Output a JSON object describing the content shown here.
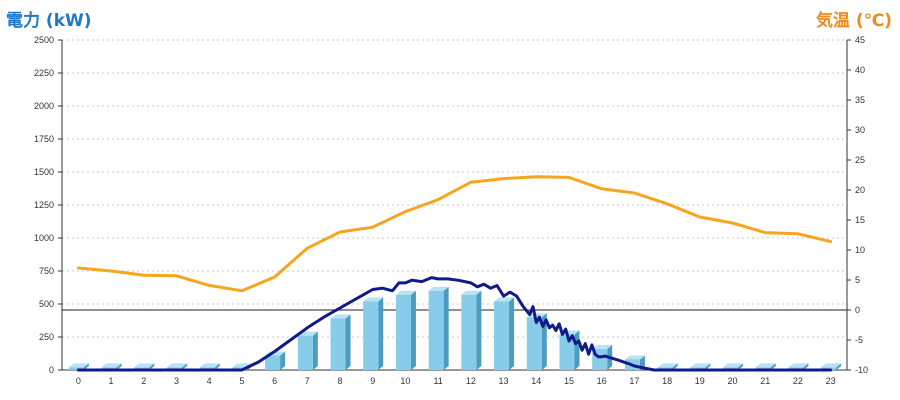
{
  "colors": {
    "power_axis": "#1f78c8",
    "temp_axis": "#f08a1c",
    "bar_face": "#87cde9",
    "bar_side": "#4b9cc0",
    "bar_top": "#b9e3f4",
    "power_line": "#101a8a",
    "temp_line": "#f7a51e",
    "grid": "#c8c8c8"
  },
  "chart_data": {
    "type": "bar+line",
    "left_axis_title": "電力 (kW)",
    "right_axis_title": "気温 (℃)",
    "categories": [
      "0",
      "1",
      "2",
      "3",
      "4",
      "5",
      "6",
      "7",
      "8",
      "9",
      "10",
      "11",
      "12",
      "13",
      "14",
      "15",
      "16",
      "17",
      "18",
      "19",
      "20",
      "21",
      "22",
      "23"
    ],
    "y_left": {
      "range": [
        0,
        2500
      ],
      "ticks": [
        0,
        250,
        500,
        750,
        1000,
        1250,
        1500,
        1750,
        2000,
        2250,
        2500
      ]
    },
    "y_right": {
      "range": [
        -10,
        45
      ],
      "ticks": [
        -10,
        -5,
        0,
        5,
        10,
        15,
        20,
        25,
        30,
        35,
        40,
        45
      ]
    },
    "grid": "horizontal-dashed",
    "series": [
      {
        "kind": "bar",
        "axis": "left",
        "values": [
          20,
          20,
          20,
          20,
          20,
          20,
          110,
          260,
          390,
          520,
          570,
          600,
          570,
          520,
          400,
          270,
          160,
          80,
          20,
          20,
          20,
          20,
          20,
          20
        ]
      },
      {
        "kind": "line",
        "axis": "left",
        "x": [
          0,
          1,
          2,
          3,
          4,
          5,
          5.5,
          6,
          6.5,
          7,
          7.5,
          8,
          8.5,
          9,
          9.3,
          9.6,
          9.8,
          10,
          10.2,
          10.5,
          10.8,
          11,
          11.3,
          11.6,
          12,
          12.2,
          12.4,
          12.6,
          12.8,
          13,
          13.2,
          13.4,
          13.6,
          13.8,
          13.9,
          14,
          14.1,
          14.2,
          14.3,
          14.4,
          14.5,
          14.6,
          14.7,
          14.8,
          14.9,
          15,
          15.1,
          15.2,
          15.3,
          15.4,
          15.5,
          15.6,
          15.7,
          15.8,
          15.9,
          16,
          16.1,
          16.3,
          16.5,
          16.8,
          17,
          17.3,
          17.6,
          17.8,
          18,
          18.5,
          19,
          20,
          21,
          22,
          23
        ],
        "values": [
          0,
          0,
          0,
          0,
          0,
          0,
          60,
          140,
          230,
          320,
          400,
          470,
          540,
          610,
          620,
          600,
          660,
          660,
          680,
          670,
          700,
          690,
          690,
          680,
          660,
          630,
          650,
          620,
          640,
          560,
          590,
          560,
          480,
          420,
          480,
          360,
          400,
          330,
          380,
          320,
          340,
          300,
          350,
          270,
          310,
          220,
          260,
          200,
          220,
          150,
          200,
          120,
          190,
          120,
          100,
          100,
          105,
          90,
          75,
          50,
          30,
          15,
          0,
          0,
          0,
          0,
          0,
          0,
          0,
          0,
          0
        ]
      },
      {
        "kind": "line",
        "axis": "right",
        "x": [
          0,
          1,
          2,
          3,
          4,
          5,
          6,
          7,
          8,
          9,
          10,
          11,
          12,
          13,
          14,
          15,
          16,
          17,
          18,
          19,
          20,
          21,
          22,
          23
        ],
        "values": [
          7,
          6.5,
          5.8,
          5.7,
          4.1,
          3.2,
          5.5,
          10.3,
          13,
          13.8,
          16.4,
          18.4,
          21.3,
          21.9,
          22.2,
          22.1,
          20.2,
          19.5,
          17.7,
          15.5,
          14.5,
          12.9,
          12.7,
          11.4
        ]
      }
    ]
  }
}
